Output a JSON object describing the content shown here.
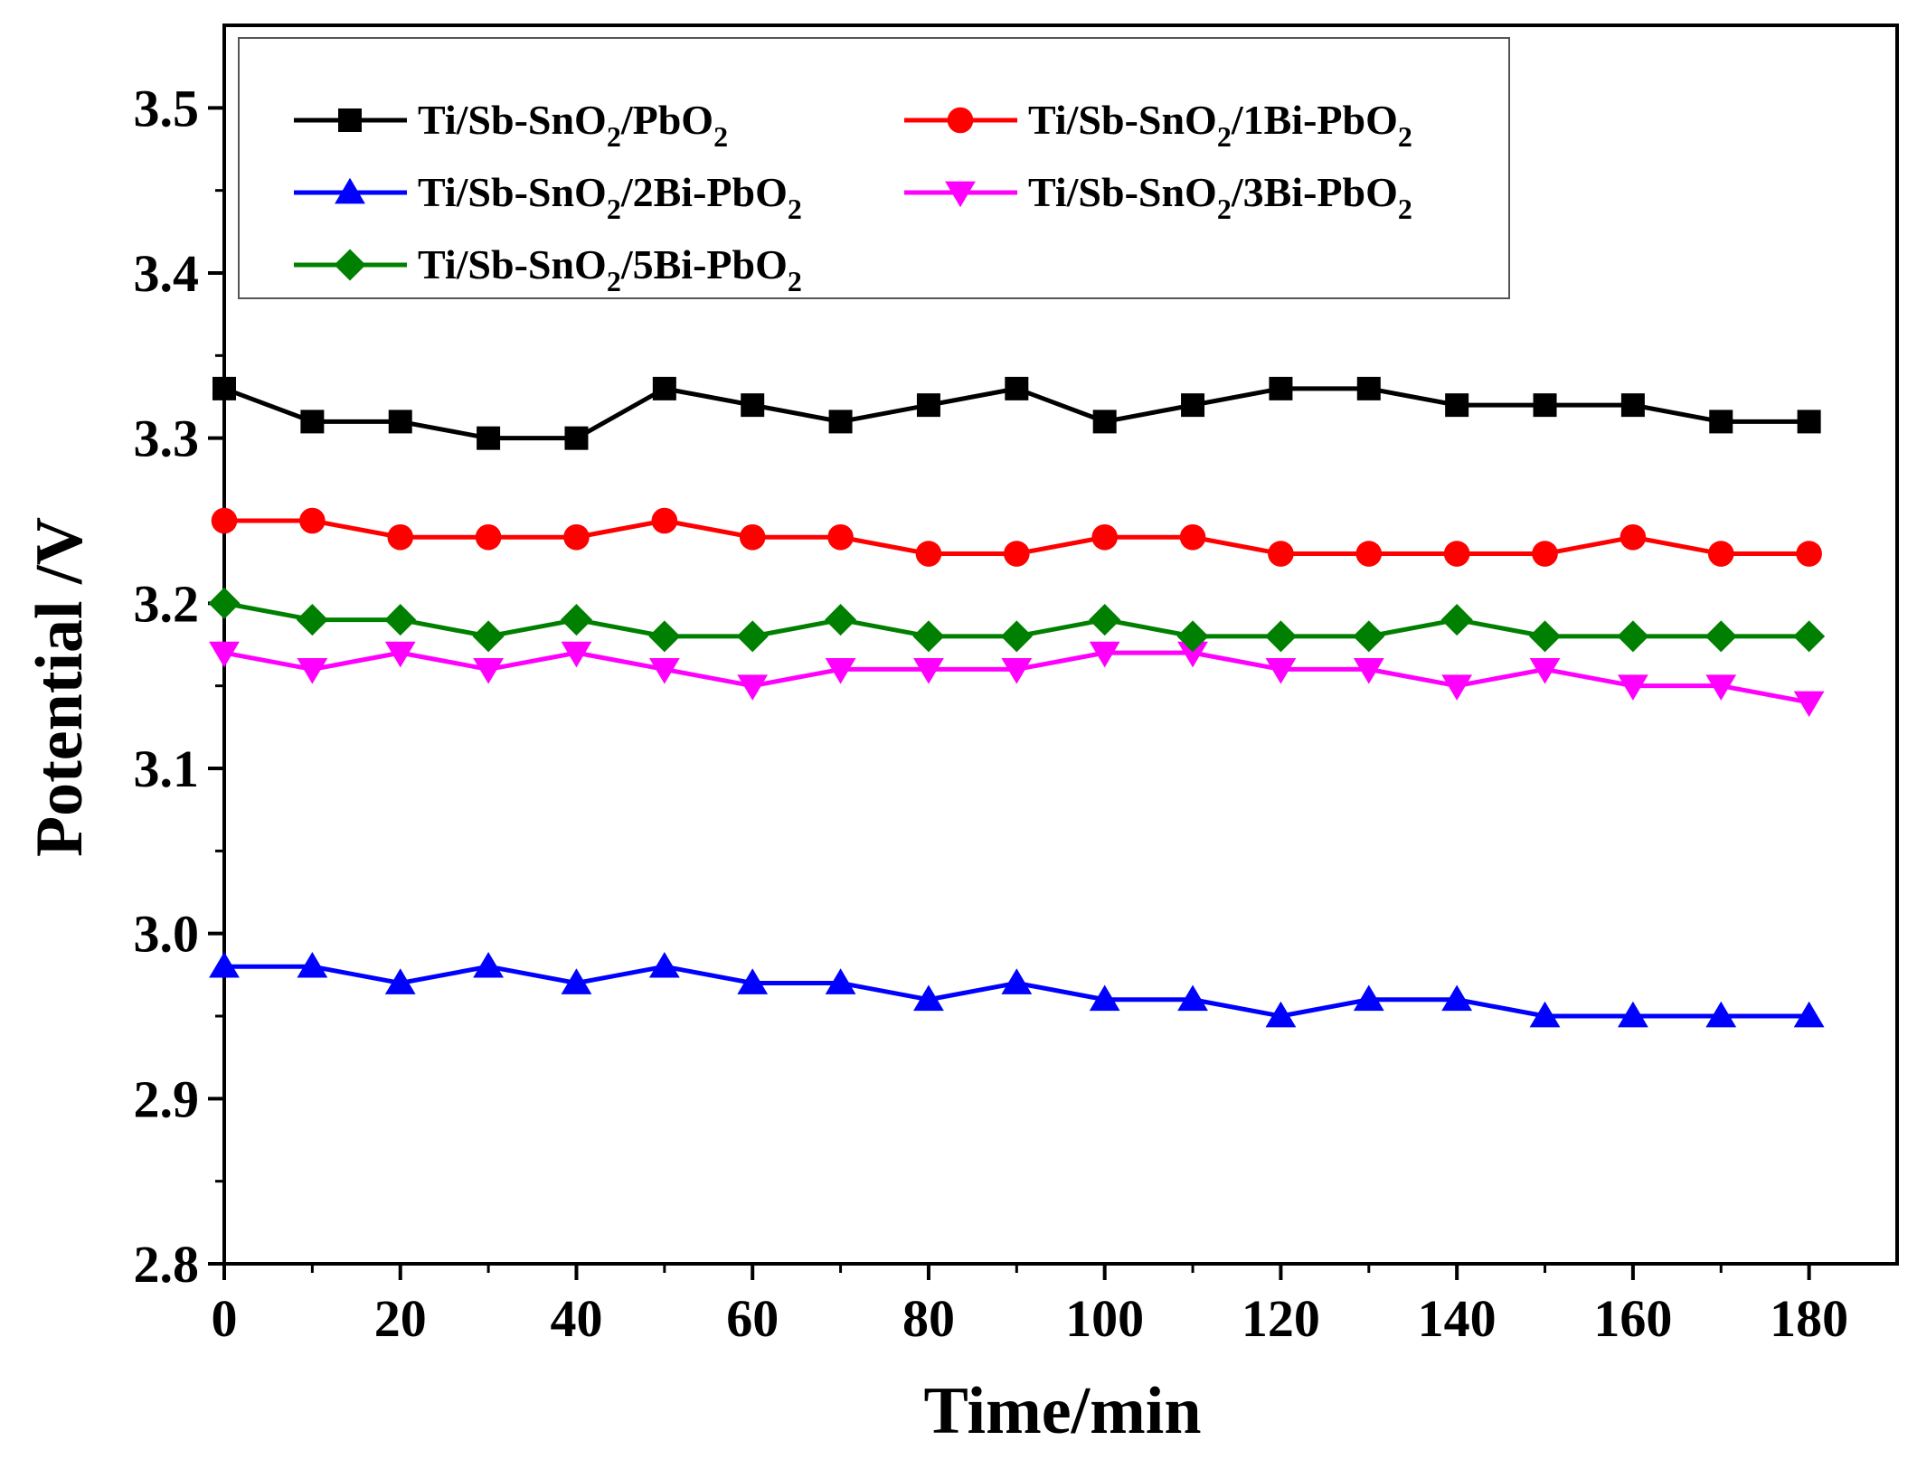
{
  "chart_data": {
    "type": "line",
    "title": "",
    "xlabel": "Time/min",
    "ylabel": "Potential /V",
    "xlim": [
      0,
      190
    ],
    "ylim": [
      2.8,
      3.55
    ],
    "xticks": [
      0,
      20,
      40,
      60,
      80,
      100,
      120,
      140,
      160,
      180
    ],
    "xtick_labels": [
      "0",
      "20",
      "40",
      "60",
      "80",
      "100",
      "120",
      "140",
      "160",
      "180"
    ],
    "yticks": [
      2.8,
      2.9,
      3.0,
      3.1,
      3.2,
      3.3,
      3.4,
      3.5
    ],
    "ytick_labels": [
      "2.8",
      "2.9",
      "3.0",
      "3.1",
      "3.2",
      "3.3",
      "3.4",
      "3.5"
    ],
    "grid": false,
    "legend_position": "top-left",
    "x": [
      0,
      10,
      20,
      30,
      40,
      50,
      60,
      70,
      80,
      90,
      100,
      110,
      120,
      130,
      140,
      150,
      160,
      170,
      180
    ],
    "series": [
      {
        "name": "Ti/Sb-SnO2/PbO2",
        "label_parts": [
          "Ti/Sb-SnO",
          "2",
          "/PbO",
          "2"
        ],
        "color": "#000000",
        "marker": "square",
        "values": [
          3.33,
          3.31,
          3.31,
          3.3,
          3.3,
          3.33,
          3.32,
          3.31,
          3.32,
          3.33,
          3.31,
          3.32,
          3.33,
          3.33,
          3.32,
          3.32,
          3.32,
          3.31,
          3.31
        ]
      },
      {
        "name": "Ti/Sb-SnO2/1Bi-PbO2",
        "label_parts": [
          "Ti/Sb-SnO",
          "2",
          "/1Bi-PbO",
          "2"
        ],
        "color": "#ff0000",
        "marker": "circle",
        "values": [
          3.25,
          3.25,
          3.24,
          3.24,
          3.24,
          3.25,
          3.24,
          3.24,
          3.23,
          3.23,
          3.24,
          3.24,
          3.23,
          3.23,
          3.23,
          3.23,
          3.24,
          3.23,
          3.23
        ]
      },
      {
        "name": "Ti/Sb-SnO2/2Bi-PbO2",
        "label_parts": [
          "Ti/Sb-SnO",
          "2",
          "/2Bi-PbO",
          "2"
        ],
        "color": "#0000ff",
        "marker": "triangle-up",
        "values": [
          2.98,
          2.98,
          2.97,
          2.98,
          2.97,
          2.98,
          2.97,
          2.97,
          2.96,
          2.97,
          2.96,
          2.96,
          2.95,
          2.96,
          2.96,
          2.95,
          2.95,
          2.95,
          2.95
        ]
      },
      {
        "name": "Ti/Sb-SnO2/3Bi-PbO2",
        "label_parts": [
          "Ti/Sb-SnO",
          "2",
          "/3Bi-PbO",
          "2"
        ],
        "color": "#ff00ff",
        "marker": "triangle-down",
        "values": [
          3.17,
          3.16,
          3.17,
          3.16,
          3.17,
          3.16,
          3.15,
          3.16,
          3.16,
          3.16,
          3.17,
          3.17,
          3.16,
          3.16,
          3.15,
          3.16,
          3.15,
          3.15,
          3.14
        ]
      },
      {
        "name": "Ti/Sb-SnO2/5Bi-PbO2",
        "label_parts": [
          "Ti/Sb-SnO",
          "2",
          "/5Bi-PbO",
          "2"
        ],
        "color": "#008000",
        "marker": "diamond",
        "values": [
          3.2,
          3.19,
          3.19,
          3.18,
          3.19,
          3.18,
          3.18,
          3.19,
          3.18,
          3.18,
          3.19,
          3.18,
          3.18,
          3.18,
          3.19,
          3.18,
          3.18,
          3.18,
          3.18
        ]
      }
    ]
  }
}
